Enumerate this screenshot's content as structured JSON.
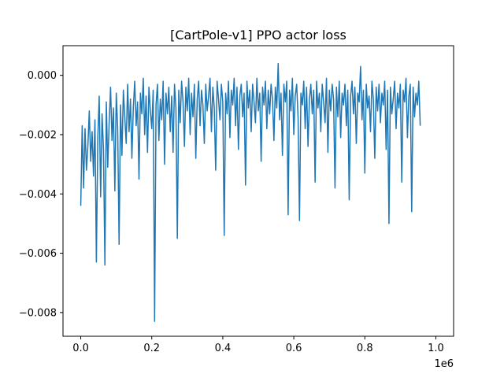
{
  "chart_data": {
    "type": "line",
    "title": "[CartPole-v1] PPO actor loss",
    "xlabel": "",
    "ylabel": "",
    "xlim": [
      -50000,
      1050000
    ],
    "ylim": [
      -0.0088,
      0.001
    ],
    "x_scale_label": "1e6",
    "grid": false,
    "legend": "none",
    "color": "#1f77b4",
    "xticks": [
      0,
      200000,
      400000,
      600000,
      800000,
      1000000
    ],
    "xtick_labels": [
      "0.0",
      "0.2",
      "0.4",
      "0.6",
      "0.8",
      "1.0"
    ],
    "yticks": [
      0.0,
      -0.002,
      -0.004,
      -0.006,
      -0.008
    ],
    "ytick_labels": [
      "0.000",
      "−0.002",
      "−0.004",
      "−0.006",
      "−0.008"
    ],
    "series": [
      {
        "x_start": 0,
        "x_step": 4000,
        "values": [
          -0.0044,
          -0.0017,
          -0.0038,
          -0.0018,
          -0.0032,
          -0.0024,
          -0.0012,
          -0.0029,
          -0.0019,
          -0.0034,
          -0.0015,
          -0.0063,
          -0.0021,
          -0.0007,
          -0.0041,
          -0.0013,
          -0.0025,
          -0.0064,
          -0.0009,
          -0.0031,
          -0.0016,
          -0.0004,
          -0.0022,
          -0.0011,
          -0.0039,
          -0.0006,
          -0.0018,
          -0.0057,
          -0.001,
          -0.0027,
          -0.0005,
          -0.0014,
          -0.0023,
          -0.0003,
          -0.0019,
          -0.0008,
          -0.0028,
          -0.0011,
          -0.0002,
          -0.0017,
          -0.0009,
          -0.0035,
          -0.0006,
          -0.0013,
          -0.0001,
          -0.002,
          -0.0007,
          -0.0026,
          -0.0004,
          -0.0012,
          -0.0018,
          -0.0005,
          -0.0083,
          -0.001,
          -0.0003,
          -0.0022,
          -0.0008,
          -0.0015,
          -0.0002,
          -0.003,
          -0.0006,
          -0.0013,
          -0.0004,
          -0.0019,
          -0.0007,
          -0.0026,
          -0.0003,
          -0.0011,
          -0.0055,
          -0.0005,
          -0.0016,
          -0.0002,
          -0.0009,
          -0.0024,
          -0.0004,
          -0.0012,
          -0.0001,
          -0.002,
          -0.0006,
          -0.0014,
          -0.0003,
          -0.0028,
          -0.0008,
          -0.0002,
          -0.0017,
          -0.0005,
          -0.001,
          -0.0023,
          -0.0003,
          -0.0012,
          -0.0007,
          -0.0001,
          -0.0019,
          -0.0004,
          -0.0011,
          -0.0032,
          -0.0002,
          -0.0008,
          -0.0015,
          -0.0003,
          -0.0009,
          -0.0054,
          -0.0006,
          -0.0013,
          -0.0002,
          -0.0021,
          -0.0005,
          -0.001,
          -0.0001,
          -0.0017,
          -0.0004,
          -0.0025,
          -0.0007,
          -0.0003,
          -0.0014,
          -0.0006,
          -0.0037,
          -0.0002,
          -0.0011,
          -0.0005,
          -0.0019,
          -0.0003,
          -0.0009,
          -0.0016,
          -0.0001,
          -0.0012,
          -0.0006,
          -0.0029,
          -0.0004,
          -0.001,
          -0.0002,
          -0.0018,
          -0.0005,
          -0.0013,
          -0.0003,
          -0.0008,
          -0.0022,
          -0.0004,
          -0.0011,
          0.0004,
          -0.0015,
          -0.0006,
          -0.0027,
          -0.0003,
          -0.0009,
          -0.0002,
          -0.0047,
          -0.0005,
          -0.0012,
          -0.0001,
          -0.002,
          -0.0007,
          -0.0003,
          -0.0014,
          -0.0049,
          -0.0006,
          -0.001,
          -0.0002,
          -0.0018,
          -0.0004,
          -0.0024,
          -0.0008,
          -0.0003,
          -0.0013,
          -0.0005,
          -0.0036,
          -0.0002,
          -0.0011,
          -0.0006,
          -0.0019,
          -0.0003,
          -0.0009,
          -0.0016,
          -0.0001,
          -0.0026,
          -0.0005,
          -0.0012,
          -0.0003,
          -0.0008,
          -0.0038,
          -0.0004,
          -0.0014,
          -0.0002,
          -0.0021,
          -0.0006,
          -0.001,
          -0.0003,
          -0.0017,
          -0.0005,
          -0.0042,
          -0.0007,
          -0.0002,
          -0.0013,
          -0.0004,
          -0.0023,
          -0.0006,
          -0.0009,
          0.0003,
          -0.0015,
          -0.0005,
          -0.0033,
          -0.0003,
          -0.0011,
          -0.0007,
          -0.0019,
          -0.0002,
          -0.0008,
          -0.0028,
          -0.0004,
          -0.0012,
          -0.0003,
          -0.0016,
          -0.0006,
          -0.001,
          -0.0002,
          -0.0025,
          -0.0005,
          -0.005,
          -0.0004,
          -0.0013,
          -0.0008,
          -0.0002,
          -0.0018,
          -0.0006,
          -0.0011,
          -0.0003,
          -0.0036,
          -0.0005,
          -0.0009,
          -0.0001,
          -0.0021,
          -0.0007,
          -0.0003,
          -0.0046,
          -0.0004,
          -0.0014,
          -0.0006,
          -0.001,
          -0.0002,
          -0.0017
        ]
      }
    ]
  }
}
